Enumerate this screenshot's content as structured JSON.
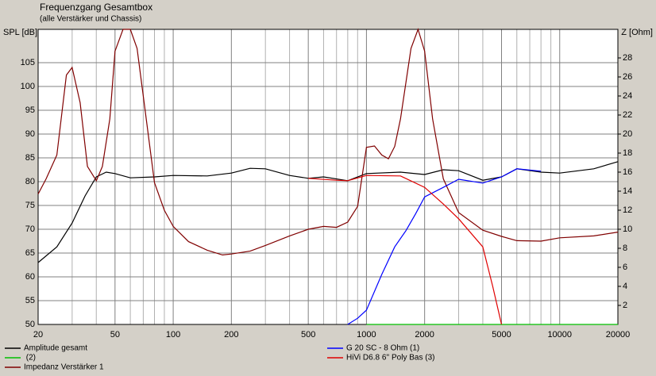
{
  "chart_data": {
    "type": "line",
    "title": "Frequenzgang Gesamtbox",
    "subtitle": "(alle Verstärker und Chassis)",
    "y_label": "SPL [dB]",
    "y2_label": "Z [Ohm]",
    "log_x": true,
    "grid": true,
    "xlim": [
      20,
      20000
    ],
    "ylim": [
      50,
      112
    ],
    "y2lim": [
      0,
      31
    ],
    "xticks": [
      20,
      50,
      100,
      200,
      500,
      1000,
      2000,
      5000,
      10000,
      20000
    ],
    "xminorticks": [
      30,
      40,
      60,
      70,
      80,
      90,
      300,
      400,
      600,
      700,
      800,
      900,
      3000,
      4000,
      6000,
      7000,
      8000,
      9000
    ],
    "yticks": [
      50,
      55,
      60,
      65,
      70,
      75,
      80,
      85,
      90,
      95,
      100,
      105
    ],
    "y2ticks": [
      2,
      4,
      6,
      8,
      10,
      12,
      14,
      16,
      18,
      20,
      22,
      24,
      26,
      28
    ],
    "series": [
      {
        "name": "Amplitude gesamt",
        "color": "#000000",
        "x": [
          20,
          25,
          30,
          35,
          40,
          45,
          50,
          60,
          80,
          100,
          150,
          200,
          250,
          300,
          400,
          500,
          600,
          800,
          1000,
          1500,
          2000,
          2500,
          3000,
          4000,
          5000,
          6000,
          8000,
          10000,
          15000,
          20000
        ],
        "values": [
          63,
          66.3,
          71.3,
          77,
          81,
          82,
          81.7,
          80.8,
          81,
          81.3,
          81.2,
          81.8,
          82.8,
          82.7,
          81.3,
          80.7,
          81,
          80.2,
          81.7,
          82,
          81.5,
          82.5,
          82.3,
          80.3,
          81,
          82.7,
          82,
          81.8,
          82.7,
          84.2
        ]
      },
      {
        "name": " (2)",
        "color": "#00c000",
        "x": [
          1000,
          20000
        ],
        "values": [
          50,
          50
        ]
      },
      {
        "name": "Impedanz Verstärker 1",
        "color": "#800000",
        "axis": "y2",
        "x": [
          20,
          22,
          25,
          28,
          30,
          33,
          36,
          40,
          43,
          47,
          50,
          55,
          60,
          65,
          70,
          80,
          90,
          100,
          120,
          150,
          180,
          200,
          250,
          300,
          400,
          500,
          600,
          700,
          800,
          900,
          1000,
          1100,
          1200,
          1300,
          1400,
          1500,
          1700,
          1850,
          2000,
          2200,
          2500,
          3000,
          4000,
          5000,
          6000,
          8000,
          10000,
          15000,
          20000
        ],
        "values": [
          13.7,
          15.3,
          17.8,
          26.2,
          27,
          23.3,
          16.6,
          15.1,
          16.6,
          21.6,
          28.7,
          31,
          31,
          29,
          24,
          14.9,
          12,
          10.3,
          8.7,
          7.8,
          7.3,
          7.4,
          7.7,
          8.3,
          9.3,
          10,
          10.3,
          10.2,
          10.75,
          12.4,
          18.6,
          18.75,
          17.8,
          17.4,
          18.7,
          21.6,
          29,
          31,
          28.7,
          21.6,
          15.3,
          11.75,
          9.9,
          9.25,
          8.8,
          8.75,
          9.1,
          9.3,
          9.7
        ]
      },
      {
        "name": "G 20 SC - 8 Ohm (1)",
        "color": "#0000ff",
        "x": [
          800,
          900,
          1000,
          1200,
          1400,
          1600,
          1800,
          2000,
          2500,
          3000,
          4000,
          5000,
          6000,
          8000
        ],
        "values": [
          50,
          51.3,
          53,
          60.5,
          66.3,
          69.7,
          73.3,
          76.8,
          78.8,
          80.5,
          79.7,
          81,
          82.7,
          82.2
        ]
      },
      {
        "name": "HiVi D6.8 6'' Poly Bas (3)",
        "color": "#e00000",
        "x": [
          500,
          700,
          800,
          1000,
          1500,
          2000,
          2500,
          3000,
          4000,
          4500,
          5000
        ],
        "values": [
          80.7,
          80.3,
          80.2,
          81.3,
          81.2,
          78.8,
          75.3,
          72.2,
          66.3,
          58,
          50
        ]
      }
    ]
  }
}
